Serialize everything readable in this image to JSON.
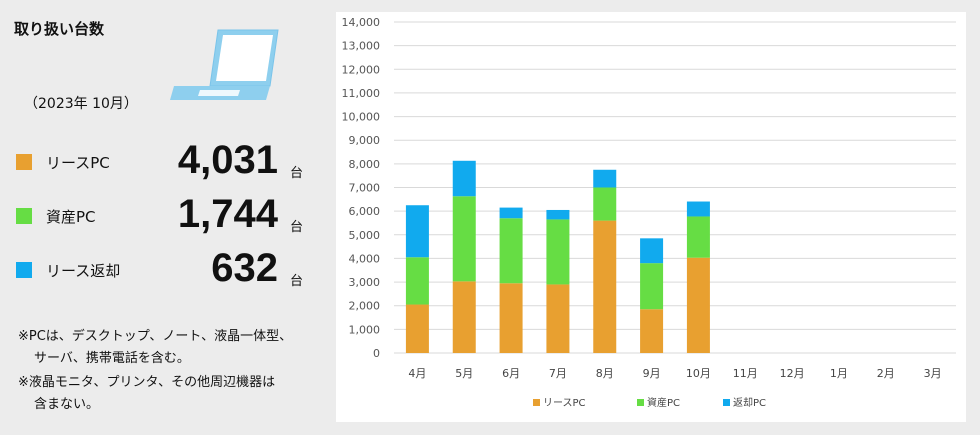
{
  "left_panel": {
    "title": "取り扱い台数",
    "period": "（2023年 10月）",
    "stats": [
      {
        "label": "リースPC",
        "value": "4,031",
        "unit": "台",
        "color": "#e8a030"
      },
      {
        "label": "資産PC",
        "value": "1,744",
        "unit": "台",
        "color": "#66dd44"
      },
      {
        "label": "リース返却",
        "value": "632",
        "unit": "台",
        "color": "#11aaee"
      }
    ],
    "notes": [
      "※PCは、デスクトップ、ノート、液晶一体型、",
      "サーバ、携帯電話を含む。",
      "※液晶モニタ、プリンタ、その他周辺機器は",
      "含まない。"
    ],
    "icon": "laptop-icon"
  },
  "chart_data": {
    "type": "bar",
    "stacked": true,
    "categories": [
      "4月",
      "5月",
      "6月",
      "7月",
      "8月",
      "9月",
      "10月",
      "11月",
      "12月",
      "1月",
      "2月",
      "3月"
    ],
    "series": [
      {
        "name": "リースPC",
        "color": "#e8a030",
        "values": [
          2050,
          3030,
          2950,
          2900,
          5600,
          1850,
          4031,
          null,
          null,
          null,
          null,
          null
        ]
      },
      {
        "name": "資産PC",
        "color": "#66dd44",
        "values": [
          2000,
          3600,
          2750,
          2750,
          1400,
          1950,
          1744,
          null,
          null,
          null,
          null,
          null
        ]
      },
      {
        "name": "返却PC",
        "color": "#11aaee",
        "values": [
          2200,
          1500,
          450,
          400,
          750,
          1050,
          632,
          null,
          null,
          null,
          null,
          null
        ]
      }
    ],
    "ylim": [
      0,
      14000
    ],
    "yticks": [
      0,
      1000,
      2000,
      3000,
      4000,
      5000,
      6000,
      7000,
      8000,
      9000,
      10000,
      11000,
      12000,
      13000,
      14000
    ],
    "ytick_labels": [
      "0",
      "1,000",
      "2,000",
      "3,000",
      "4,000",
      "5,000",
      "6,000",
      "7,000",
      "8,000",
      "9,000",
      "10,000",
      "11,000",
      "12,000",
      "13,000",
      "14,000"
    ],
    "grid": true,
    "legend_position": "bottom"
  }
}
